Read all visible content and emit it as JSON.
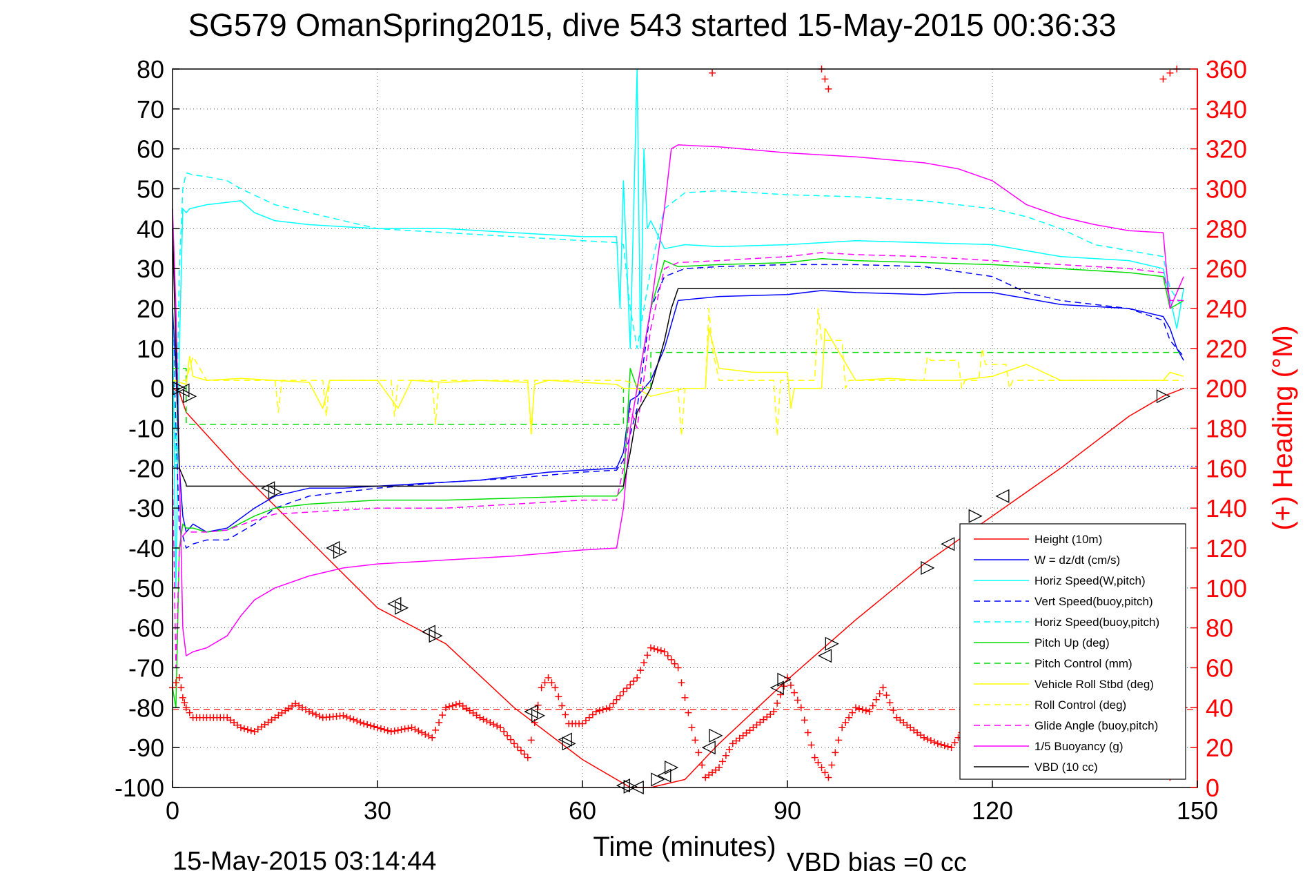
{
  "chart_data": {
    "type": "line",
    "title": "SG579 OmanSpring2015, dive 543 started 15-May-2015 00:36:33",
    "xlabel": "Time (minutes)",
    "ylabel_left": "",
    "ylabel_right": "(+) Heading (°M)",
    "footer_left": "15-May-2015 03:14:44",
    "footer_right": "VBD bias =0 cc",
    "xlim": [
      0,
      150
    ],
    "ylim_left": [
      -100,
      80
    ],
    "ylim_right": [
      0,
      360
    ],
    "x_ticks": [
      "0",
      "30",
      "60",
      "90",
      "120",
      "150"
    ],
    "y_left_ticks": [
      "80",
      "70",
      "60",
      "50",
      "40",
      "30",
      "20",
      "10",
      "0",
      "-10",
      "-20",
      "-30",
      "-40",
      "-50",
      "-60",
      "-70",
      "-80",
      "-90",
      "-100"
    ],
    "y_right_ticks": [
      "360",
      "340",
      "320",
      "300",
      "280",
      "260",
      "240",
      "220",
      "200",
      "180",
      "160",
      "140",
      "120",
      "100",
      "80",
      "60",
      "40",
      "20",
      "0"
    ],
    "grid": true,
    "legend_position": "bottom-right",
    "colors": {
      "red": "#ff0000",
      "blue": "#0000ff",
      "cyan": "#00ffff",
      "green": "#00dd00",
      "yellow": "#ffff00",
      "magenta": "#ff00ff",
      "black": "#000000"
    },
    "hlines": [
      {
        "y": -80.5,
        "color": "#ff0000",
        "style": "dashed"
      },
      {
        "y": -19.5,
        "color": "#0000ff",
        "style": "dotted"
      }
    ],
    "series": [
      {
        "name": "Height (10m)",
        "color": "#ff0000",
        "style": "solid",
        "x": [
          0,
          1,
          2,
          10,
          20,
          30,
          40,
          50,
          60,
          67,
          70,
          75,
          80,
          90,
          100,
          110,
          120,
          130,
          140,
          145,
          148
        ],
        "y": [
          0,
          -1,
          -6,
          -21,
          -38,
          -55,
          -64,
          -80,
          -93,
          -100,
          -100,
          -98,
          -89,
          -73,
          -58,
          -44,
          -32,
          -20,
          -7,
          -2,
          0
        ]
      },
      {
        "name": "W = dz/dt (cm/s)",
        "color": "#0000ff",
        "style": "solid",
        "x": [
          0,
          0.5,
          1,
          1.5,
          2,
          3,
          5,
          8,
          12,
          15,
          20,
          25,
          30,
          35,
          40,
          45,
          50,
          55,
          60,
          65,
          66,
          67,
          68,
          70,
          72,
          74,
          80,
          90,
          95,
          100,
          110,
          115,
          120,
          125,
          130,
          135,
          140,
          145,
          146,
          147,
          148
        ],
        "y": [
          20,
          5,
          -20,
          -32,
          -36,
          -34,
          -36,
          -35,
          -30,
          -27,
          -25,
          -25,
          -24.5,
          -24,
          -23.5,
          -23,
          -22,
          -21,
          -20.5,
          -20,
          -16,
          -3,
          -2,
          2,
          10,
          22,
          23,
          23.5,
          24.5,
          24,
          23.5,
          24,
          24,
          22.5,
          21,
          20.5,
          20,
          18,
          15,
          10,
          7
        ]
      },
      {
        "name": "Horiz Speed(W,pitch)",
        "color": "#00ffff",
        "style": "solid",
        "x": [
          0,
          0.5,
          1,
          1.5,
          2,
          2.5,
          5,
          10,
          12,
          15,
          20,
          30,
          40,
          50,
          60,
          65,
          65.5,
          66,
          67,
          68,
          68.5,
          69,
          69.5,
          70,
          72,
          75,
          80,
          90,
          100,
          110,
          120,
          130,
          140,
          145,
          147,
          148
        ],
        "y": [
          20,
          -50,
          10,
          45,
          44,
          45,
          46,
          47,
          44,
          42,
          41,
          40,
          40,
          39,
          38,
          38,
          20,
          52,
          10,
          80,
          10,
          60,
          40,
          42,
          35,
          36,
          35.5,
          36,
          37,
          36.5,
          36,
          33,
          32,
          30,
          15,
          25
        ]
      },
      {
        "name": "Vert Speed(buoy,pitch)",
        "color": "#0000ff",
        "style": "dashed",
        "x": [
          0,
          0.5,
          1,
          1.5,
          2,
          3,
          5,
          8,
          12,
          15,
          20,
          30,
          40,
          50,
          60,
          65,
          66,
          68,
          70,
          72,
          75,
          80,
          90,
          100,
          110,
          120,
          125,
          130,
          140,
          145,
          146,
          148
        ],
        "y": [
          20,
          -10,
          -35,
          -37,
          -40,
          -39,
          -38,
          -38,
          -34,
          -30,
          -27,
          -25,
          -23.5,
          -22.5,
          -21,
          -20.5,
          -18,
          -5,
          20,
          28,
          30,
          30.5,
          31,
          31,
          30.5,
          28,
          24,
          22,
          20,
          17,
          12,
          8
        ]
      },
      {
        "name": "Horiz Speed(buoy,pitch)",
        "color": "#00ffff",
        "style": "dashed",
        "x": [
          0,
          0.5,
          1,
          1.5,
          2,
          3,
          5,
          8,
          10,
          15,
          20,
          30,
          40,
          50,
          60,
          65,
          66,
          67,
          68,
          70,
          72,
          75,
          80,
          90,
          100,
          110,
          120,
          125,
          130,
          135,
          140,
          145,
          146,
          148
        ],
        "y": [
          20,
          -20,
          30,
          50,
          54,
          53.5,
          53,
          52,
          50,
          46,
          44,
          40,
          39,
          38,
          37,
          36.5,
          36,
          20,
          10,
          30,
          45,
          49,
          49.5,
          48.5,
          48,
          47,
          45,
          43,
          40,
          36,
          34.5,
          33,
          25,
          20
        ]
      },
      {
        "name": "Pitch Up (deg)",
        "color": "#00dd00",
        "style": "solid",
        "x": [
          0,
          0.5,
          1,
          1.5,
          2,
          3,
          5,
          8,
          12,
          15,
          20,
          30,
          40,
          50,
          60,
          65,
          66,
          67,
          68,
          69,
          70,
          72,
          74,
          80,
          90,
          95,
          100,
          110,
          120,
          130,
          140,
          145,
          146,
          148
        ],
        "y": [
          -75,
          -80,
          -40,
          -34,
          -35,
          -35,
          -36,
          -35.5,
          -32,
          -30,
          -29,
          -28,
          -28,
          -27.5,
          -27,
          -27,
          -25,
          5,
          0,
          10,
          20,
          32,
          30.5,
          31,
          31.5,
          32.5,
          32,
          31.5,
          31,
          30,
          29,
          28,
          20,
          22
        ]
      },
      {
        "name": "Pitch Control (mm)",
        "color": "#00dd00",
        "style": "dashed",
        "x": [
          0,
          2,
          2.01,
          66,
          66.01,
          70,
          70.01,
          148
        ],
        "y": [
          5,
          5,
          -9,
          -9,
          0,
          0,
          9,
          9
        ]
      },
      {
        "name": "Vehicle Roll Stbd (deg)",
        "color": "#ffff00",
        "style": "solid",
        "x": [
          0,
          2,
          2.5,
          3,
          5,
          10,
          15,
          20,
          22,
          23,
          25,
          30,
          33,
          35,
          40,
          45,
          52,
          52.5,
          53,
          55,
          60,
          65,
          66,
          68,
          70,
          75,
          78,
          78.5,
          80,
          85,
          90,
          90.5,
          91,
          95,
          95.5,
          100,
          105,
          110,
          115,
          120,
          125,
          130,
          140,
          145,
          146,
          148
        ],
        "y": [
          2,
          1,
          8,
          3,
          2,
          2.5,
          2,
          1.5,
          -5,
          2,
          2,
          2,
          -5,
          2,
          1.5,
          2,
          1.5,
          -10,
          1,
          2,
          1.5,
          1,
          0,
          0,
          -2,
          0,
          0,
          15,
          5,
          4,
          4,
          -5,
          0,
          0,
          15,
          2,
          2.5,
          2,
          2,
          3,
          6,
          2,
          2,
          2,
          4,
          3
        ]
      },
      {
        "name": "Roll Control (deg)",
        "color": "#ffff00",
        "style": "dashed",
        "x": [
          0,
          2,
          3,
          5,
          15,
          15.5,
          16,
          22,
          22.5,
          23,
          32,
          32.5,
          33,
          38,
          38.5,
          39,
          52,
          52.5,
          53,
          60,
          66,
          70,
          74,
          74.5,
          75,
          78,
          78.5,
          79,
          80,
          88,
          88.5,
          89,
          94,
          94.5,
          95,
          98,
          98.5,
          99,
          110,
          110.5,
          111,
          115,
          115.5,
          116,
          118,
          118.5,
          119,
          122,
          122.5,
          123,
          148
        ],
        "y": [
          2,
          2,
          8,
          2,
          2,
          -6,
          2,
          2,
          -7,
          2,
          2,
          -7,
          2,
          2,
          -9,
          2,
          2,
          -12,
          2,
          2,
          2,
          0,
          0,
          -12,
          0,
          0,
          20,
          10,
          2,
          2,
          -12,
          2,
          2,
          20,
          12,
          12,
          0,
          2,
          2,
          8,
          7,
          7,
          0,
          2,
          2,
          10,
          6,
          6,
          0,
          2,
          2
        ]
      },
      {
        "name": "Glide Angle (buoy,pitch)",
        "color": "#ff00ff",
        "style": "dashed",
        "x": [
          0,
          0.5,
          1,
          1.5,
          2,
          3,
          5,
          8,
          12,
          15,
          20,
          30,
          40,
          50,
          60,
          65,
          66,
          67,
          68,
          70,
          72,
          74,
          80,
          90,
          95,
          100,
          110,
          120,
          130,
          140,
          145,
          146,
          148
        ],
        "y": [
          -20,
          -70,
          -40,
          -37,
          -36,
          -36,
          -36,
          -35.5,
          -33,
          -31.5,
          -31,
          -30,
          -30,
          -29,
          -28,
          -28,
          -20,
          -5,
          -10,
          15,
          30,
          31.5,
          32,
          33,
          34,
          33.5,
          33,
          32,
          31,
          30,
          29,
          22,
          22
        ]
      },
      {
        "name": "1/5 Buoyancy (g)",
        "color": "#ff00ff",
        "style": "solid",
        "x": [
          0,
          0.5,
          1,
          1.5,
          2,
          3,
          5,
          8,
          10,
          12,
          15,
          20,
          25,
          30,
          40,
          50,
          60,
          65,
          66,
          67,
          68,
          70,
          72,
          73,
          74,
          80,
          90,
          100,
          110,
          115,
          120,
          125,
          130,
          135,
          140,
          145,
          146,
          148
        ],
        "y": [
          45,
          20,
          -20,
          -60,
          -67,
          -66,
          -65,
          -62,
          -57,
          -53,
          -50,
          -47,
          -45,
          -44,
          -43,
          -42,
          -40.5,
          -40,
          -30,
          -10,
          0,
          20,
          45,
          60,
          61,
          60.5,
          59,
          58,
          56.5,
          55,
          52,
          46,
          43,
          41,
          39.5,
          39,
          20,
          28
        ]
      },
      {
        "name": "VBD (10 cc)",
        "color": "#000000",
        "style": "solid",
        "x": [
          0,
          1,
          2,
          2.01,
          66,
          67,
          68,
          70,
          72,
          73,
          74,
          148
        ],
        "y": [
          40,
          -20,
          -24,
          -24.5,
          -24.5,
          -16,
          -6,
          0,
          12,
          20,
          25,
          25
        ]
      }
    ],
    "heading_series": {
      "axis": "right",
      "color": "#ff0000",
      "marker": "+",
      "x": [
        0,
        1,
        1.5,
        2,
        3,
        5,
        8,
        10,
        12,
        15,
        18,
        20,
        22,
        25,
        28,
        30,
        32,
        35,
        38,
        40,
        42,
        45,
        48,
        50,
        52,
        54,
        55,
        56,
        58,
        60,
        62,
        64,
        66,
        68,
        70,
        72,
        74,
        76,
        78,
        80,
        82,
        85,
        88,
        90,
        92,
        94,
        96,
        98,
        100,
        102,
        104,
        106,
        108,
        110,
        112,
        114,
        116,
        118,
        120,
        122,
        124,
        126,
        128,
        130,
        132,
        134,
        136,
        138,
        140,
        142,
        144,
        146,
        148
      ],
      "y": [
        50,
        55,
        45,
        40,
        35,
        35,
        35,
        30,
        28,
        35,
        42,
        38,
        35,
        36,
        32,
        30,
        28,
        30,
        25,
        40,
        42,
        35,
        30,
        22,
        15,
        50,
        55,
        50,
        32,
        32,
        38,
        40,
        48,
        55,
        70,
        68,
        60,
        30,
        5,
        10,
        22,
        30,
        38,
        55,
        40,
        15,
        5,
        30,
        40,
        38,
        50,
        35,
        30,
        25,
        22,
        20,
        30,
        38,
        35,
        40,
        48,
        42,
        35,
        28,
        22,
        20,
        30,
        40,
        38,
        35,
        30,
        5,
        40
      ],
      "outliers_x": [
        79,
        95,
        95.5,
        96,
        145,
        146,
        147
      ],
      "outliers_y": [
        358,
        360,
        355,
        350,
        355,
        358,
        360
      ]
    },
    "triangle_markers": {
      "x": [
        1,
        1.5,
        2.5,
        14,
        15,
        23.5,
        24.5,
        32.5,
        33.5,
        37.5,
        38.5,
        52.5,
        53.5,
        57.5,
        58,
        66,
        67,
        68,
        71,
        72,
        73,
        78.5,
        79.5,
        88.5,
        89.5,
        95.5,
        96.5,
        110.5,
        113.5,
        117.5,
        121.5,
        145
      ],
      "y": [
        0,
        -0.5,
        -2,
        -25,
        -26,
        -40,
        -41,
        -54,
        -55,
        -61,
        -62,
        -81,
        -82,
        -88,
        -89,
        -99.5,
        -99.8,
        -100,
        -98,
        -97,
        -95,
        -90,
        -87,
        -75,
        -73,
        -67,
        -64,
        -45,
        -39,
        -32,
        -27,
        -2
      ],
      "dirs": [
        "r",
        "l",
        "r",
        "l",
        "r",
        "l",
        "r",
        "l",
        "r",
        "l",
        "r",
        "l",
        "r",
        "l",
        "r",
        "l",
        "r",
        "l",
        "r",
        "l",
        "r",
        "l",
        "r",
        "l",
        "r",
        "l",
        "r",
        "r",
        "l",
        "r",
        "l",
        "r"
      ]
    }
  }
}
